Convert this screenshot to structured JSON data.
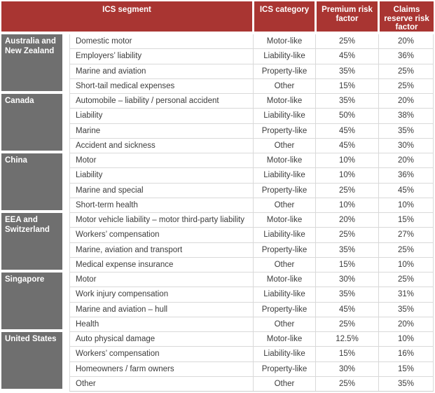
{
  "table": {
    "header": {
      "segment": "ICS segment",
      "category": "ICS category",
      "premium": "Premium risk factor",
      "claims": "Claims reserve risk factor"
    },
    "groups": [
      {
        "segment": "Australia and New Zealand",
        "rows": [
          {
            "line": "Domestic motor",
            "category": "Motor-like",
            "premium": "25%",
            "claims": "20%"
          },
          {
            "line": "Employers’ liability",
            "category": "Liability-like",
            "premium": "45%",
            "claims": "36%"
          },
          {
            "line": "Marine and aviation",
            "category": "Property-like",
            "premium": "35%",
            "claims": "25%"
          },
          {
            "line": "Short-tail medical expenses",
            "category": "Other",
            "premium": "15%",
            "claims": "25%"
          }
        ]
      },
      {
        "segment": "Canada",
        "rows": [
          {
            "line": "Automobile – liability / personal accident",
            "category": "Motor-like",
            "premium": "35%",
            "claims": "20%"
          },
          {
            "line": "Liability",
            "category": "Liability-like",
            "premium": "50%",
            "claims": "38%"
          },
          {
            "line": "Marine",
            "category": "Property-like",
            "premium": "45%",
            "claims": "35%"
          },
          {
            "line": "Accident and sickness",
            "category": "Other",
            "premium": "45%",
            "claims": "30%"
          }
        ]
      },
      {
        "segment": "China",
        "rows": [
          {
            "line": "Motor",
            "category": "Motor-like",
            "premium": "10%",
            "claims": "20%"
          },
          {
            "line": "Liability",
            "category": "Liability-like",
            "premium": "10%",
            "claims": "36%"
          },
          {
            "line": "Marine and special",
            "category": "Property-like",
            "premium": "25%",
            "claims": "45%"
          },
          {
            "line": "Short-term health",
            "category": "Other",
            "premium": "10%",
            "claims": "10%"
          }
        ]
      },
      {
        "segment": "EEA and Switzerland",
        "rows": [
          {
            "line": "Motor vehicle liability – motor third-party liability",
            "category": "Motor-like",
            "premium": "20%",
            "claims": "15%"
          },
          {
            "line": "Workers’ compensation",
            "category": "Liability-like",
            "premium": "25%",
            "claims": "27%"
          },
          {
            "line": "Marine, aviation and transport",
            "category": "Property-like",
            "premium": "35%",
            "claims": "25%"
          },
          {
            "line": "Medical expense insurance",
            "category": "Other",
            "premium": "15%",
            "claims": "10%"
          }
        ]
      },
      {
        "segment": "Singapore",
        "rows": [
          {
            "line": "Motor",
            "category": "Motor-like",
            "premium": "30%",
            "claims": "25%"
          },
          {
            "line": "Work injury compensation",
            "category": "Liability-like",
            "premium": "35%",
            "claims": "31%"
          },
          {
            "line": "Marine and aviation – hull",
            "category": "Property-like",
            "premium": "45%",
            "claims": "35%"
          },
          {
            "line": "Health",
            "category": "Other",
            "premium": "25%",
            "claims": "20%"
          }
        ]
      },
      {
        "segment": "United States",
        "rows": [
          {
            "line": "Auto physical damage",
            "category": "Motor-like",
            "premium": "12.5%",
            "claims": "10%"
          },
          {
            "line": "Workers’ compensation",
            "category": "Liability-like",
            "premium": "15%",
            "claims": "16%"
          },
          {
            "line": "Homeowners / farm owners",
            "category": "Property-like",
            "premium": "30%",
            "claims": "15%"
          },
          {
            "line": "Other",
            "category": "Other",
            "premium": "25%",
            "claims": "35%"
          }
        ]
      }
    ]
  },
  "colors": {
    "header_bg": "#a93532",
    "segment_bg": "#6f6f6f",
    "row_border": "#d9d9d9",
    "body_text": "#3c3c3c",
    "header_text": "#ffffff"
  }
}
